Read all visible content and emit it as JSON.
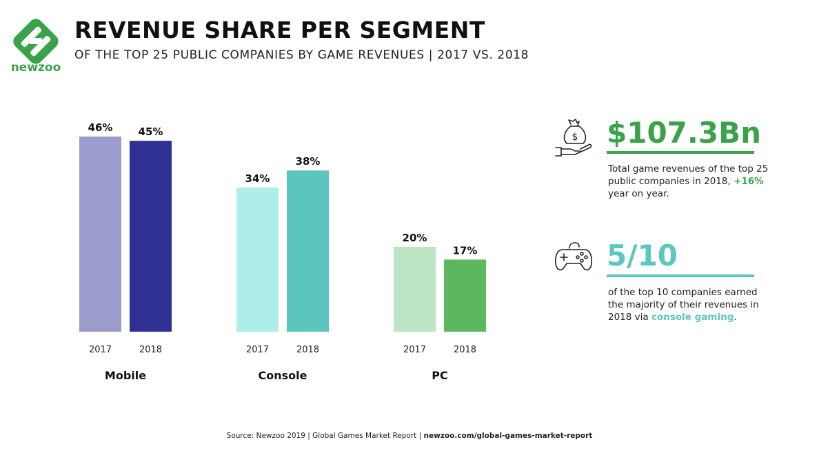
{
  "brand": {
    "name": "newzoo",
    "color": "#3aa34a"
  },
  "header": {
    "title": "REVENUE SHARE PER SEGMENT",
    "subtitle": "OF THE TOP 25 PUBLIC COMPANIES BY GAME REVENUES | 2017 VS. 2018"
  },
  "chart_data": {
    "type": "bar",
    "categories": [
      "Mobile",
      "Console",
      "PC"
    ],
    "x_labels": [
      "2017",
      "2018"
    ],
    "series": [
      {
        "name": "2017",
        "values": [
          46,
          34,
          20
        ]
      },
      {
        "name": "2018",
        "values": [
          45,
          38,
          17
        ]
      }
    ],
    "data_labels": [
      [
        "46%",
        "45%"
      ],
      [
        "34%",
        "38%"
      ],
      [
        "20%",
        "17%"
      ]
    ],
    "colors": [
      [
        "#9b9ccb",
        "#2e3192"
      ],
      [
        "#aeeee8",
        "#5cc6bc"
      ],
      [
        "#bde5c3",
        "#5cb85f"
      ]
    ],
    "ylim": [
      0,
      46
    ],
    "grid": false,
    "legend": "none"
  },
  "stats": [
    {
      "icon": "money-bag-hand-icon",
      "value": "$107.3Bn",
      "color": "#3aa34a",
      "text_before": "Total game revenues of the top 25 public companies in 2018, ",
      "highlight": "+16%",
      "text_after": " year on year."
    },
    {
      "icon": "gamepad-icon",
      "value": "5/10",
      "color": "#5cc6c0",
      "text_before": "of the top 10 companies earned the majority of their revenues in 2018 via ",
      "highlight": "console gaming",
      "text_after": "."
    }
  ],
  "footer": {
    "source_text": "Source: Newzoo 2019 | Global Games Market Report | ",
    "source_link": "newzoo.com/global-games-market-report"
  }
}
